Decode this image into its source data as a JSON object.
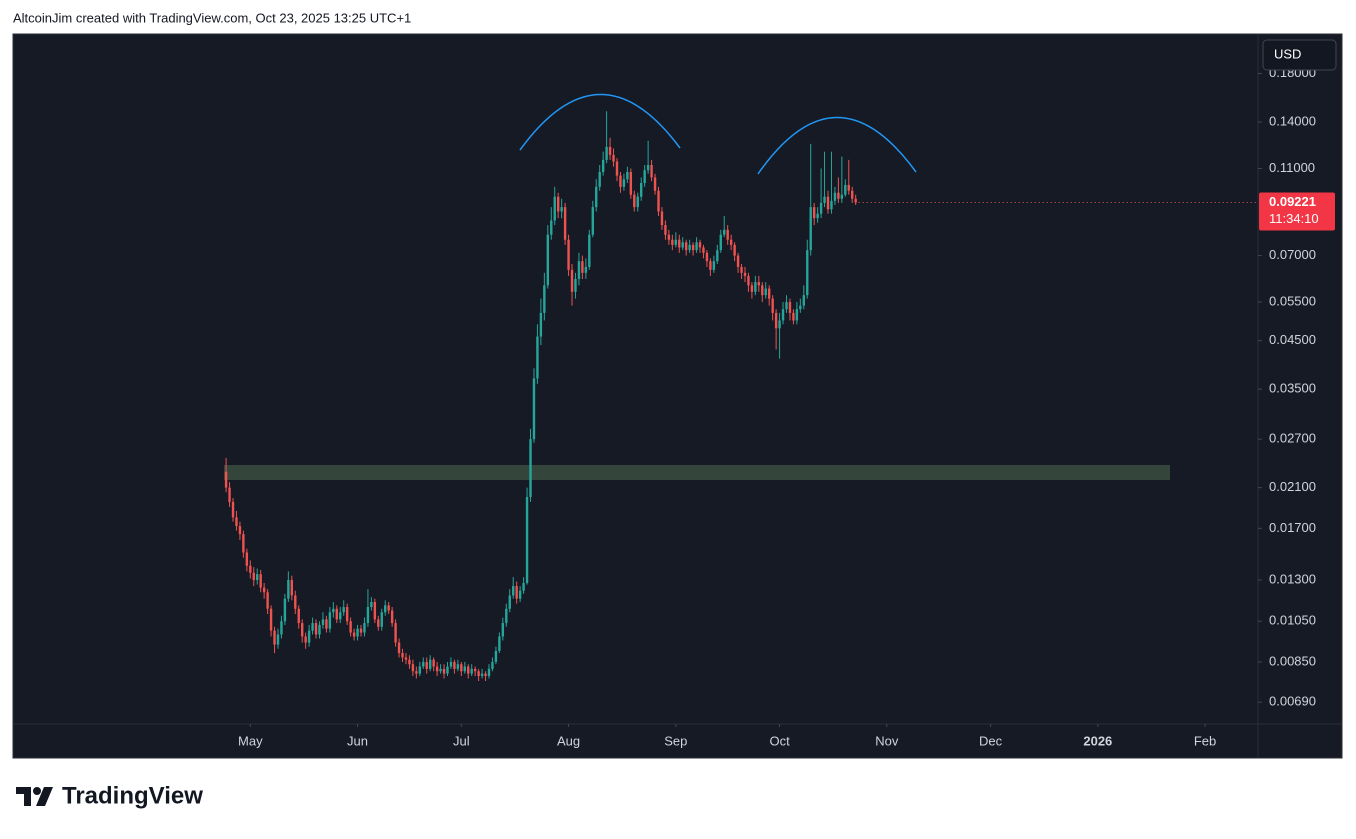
{
  "header": "AltcoinJim created with TradingView.com, Oct 23, 2025 13:25 UTC+1",
  "footer_logo": "TradingView",
  "currency": "USD",
  "countdown": "11:34:10",
  "chart_data": {
    "type": "candlestick",
    "log_scale": true,
    "grid": false,
    "up_color": "#26a69a",
    "down_color": "#ef5350",
    "ylim": [
      0.00616,
      0.221
    ],
    "yticks": [
      {
        "value": 0.18,
        "label": "0.18000"
      },
      {
        "value": 0.14,
        "label": "0.14000"
      },
      {
        "value": 0.11,
        "label": "0.11000"
      },
      {
        "value": 0.07,
        "label": "0.07000"
      },
      {
        "value": 0.055,
        "label": "0.05500"
      },
      {
        "value": 0.045,
        "label": "0.04500"
      },
      {
        "value": 0.035,
        "label": "0.03500"
      },
      {
        "value": 0.027,
        "label": "0.02700"
      },
      {
        "value": 0.021,
        "label": "0.02100"
      },
      {
        "value": 0.017,
        "label": "0.01700"
      },
      {
        "value": 0.013,
        "label": "0.01300"
      },
      {
        "value": 0.0105,
        "label": "0.01050"
      },
      {
        "value": 0.0085,
        "label": "0.00850"
      },
      {
        "value": 0.0069,
        "label": "0.00690"
      }
    ],
    "xlim": [
      -61.6,
      298.3
    ],
    "xticks": [
      {
        "value": 7,
        "label": "May"
      },
      {
        "value": 38,
        "label": "Jun"
      },
      {
        "value": 68,
        "label": "Jul"
      },
      {
        "value": 99,
        "label": "Aug"
      },
      {
        "value": 130,
        "label": "Sep"
      },
      {
        "value": 160,
        "label": "Oct"
      },
      {
        "value": 191,
        "label": "Nov"
      },
      {
        "value": 221,
        "label": "Dec"
      },
      {
        "value": 252,
        "label": "2026",
        "bold": true
      },
      {
        "value": 283,
        "label": "Feb"
      }
    ],
    "open": [
      0.0228,
      0.021,
      0.0195,
      0.018,
      0.0172,
      0.0165,
      0.015,
      0.014,
      0.0135,
      0.013,
      0.0134,
      0.0125,
      0.0122,
      0.0112,
      0.01,
      0.0093,
      0.0098,
      0.0105,
      0.0118,
      0.013,
      0.012,
      0.0112,
      0.0104,
      0.0097,
      0.0094,
      0.01,
      0.0104,
      0.0098,
      0.0103,
      0.0106,
      0.0101,
      0.011,
      0.0112,
      0.0106,
      0.011,
      0.0113,
      0.0105,
      0.0099,
      0.0097,
      0.0101,
      0.0099,
      0.0104,
      0.0113,
      0.0116,
      0.0106,
      0.0102,
      0.011,
      0.0114,
      0.0111,
      0.0104,
      0.0094,
      0.0089,
      0.0087,
      0.0086,
      0.0084,
      0.0081,
      0.008,
      0.0083,
      0.0085,
      0.0082,
      0.0086,
      0.0083,
      0.0081,
      0.0082,
      0.008,
      0.0083,
      0.0085,
      0.0082,
      0.0084,
      0.0081,
      0.0083,
      0.008,
      0.0082,
      0.0081,
      0.0079,
      0.008,
      0.0079,
      0.0082,
      0.0085,
      0.009,
      0.0097,
      0.0104,
      0.0112,
      0.012,
      0.0126,
      0.0118,
      0.0123,
      0.0128,
      0.02,
      0.027,
      0.037,
      0.046,
      0.052,
      0.06,
      0.078,
      0.084,
      0.095,
      0.088,
      0.09,
      0.076,
      0.065,
      0.058,
      0.062,
      0.068,
      0.064,
      0.066,
      0.078,
      0.09,
      0.1,
      0.108,
      0.115,
      0.123,
      0.118,
      0.114,
      0.106,
      0.1,
      0.104,
      0.108,
      0.096,
      0.09,
      0.095,
      0.102,
      0.109,
      0.112,
      0.105,
      0.098,
      0.088,
      0.082,
      0.078,
      0.076,
      0.074,
      0.076,
      0.073,
      0.075,
      0.072,
      0.074,
      0.072,
      0.075,
      0.073,
      0.071,
      0.068,
      0.065,
      0.068,
      0.072,
      0.078,
      0.08,
      0.076,
      0.074,
      0.07,
      0.066,
      0.064,
      0.063,
      0.06,
      0.058,
      0.061,
      0.06,
      0.057,
      0.059,
      0.056,
      0.052,
      0.048,
      0.05,
      0.053,
      0.055,
      0.052,
      0.05,
      0.053,
      0.054,
      0.057,
      0.072,
      0.09,
      0.085,
      0.087,
      0.092,
      0.095,
      0.089,
      0.093,
      0.097,
      0.094,
      0.096,
      0.101,
      0.098,
      0.094
    ],
    "high": [
      0.0245,
      0.0216,
      0.0199,
      0.0186,
      0.0176,
      0.0168,
      0.0153,
      0.0144,
      0.0139,
      0.0138,
      0.0137,
      0.0128,
      0.0124,
      0.0114,
      0.0102,
      0.0101,
      0.0108,
      0.0121,
      0.0136,
      0.0133,
      0.0123,
      0.0114,
      0.0106,
      0.0099,
      0.0103,
      0.0107,
      0.0106,
      0.0105,
      0.011,
      0.0108,
      0.0113,
      0.0116,
      0.0114,
      0.0113,
      0.0117,
      0.0115,
      0.0107,
      0.0101,
      0.0103,
      0.0103,
      0.0107,
      0.0124,
      0.0119,
      0.0118,
      0.0108,
      0.0112,
      0.0117,
      0.0116,
      0.0113,
      0.0106,
      0.0096,
      0.0091,
      0.0089,
      0.0088,
      0.0086,
      0.0083,
      0.0085,
      0.0087,
      0.0087,
      0.0088,
      0.0087,
      0.0085,
      0.0084,
      0.0084,
      0.0085,
      0.0087,
      0.0086,
      0.0086,
      0.0085,
      0.0085,
      0.0084,
      0.0084,
      0.0083,
      0.0082,
      0.0082,
      0.0081,
      0.0084,
      0.0087,
      0.0092,
      0.0099,
      0.0107,
      0.0115,
      0.0124,
      0.0132,
      0.0129,
      0.0126,
      0.0132,
      0.021,
      0.0285,
      0.039,
      0.049,
      0.056,
      0.064,
      0.082,
      0.09,
      0.1,
      0.097,
      0.094,
      0.092,
      0.078,
      0.067,
      0.064,
      0.071,
      0.07,
      0.069,
      0.08,
      0.093,
      0.104,
      0.112,
      0.12,
      0.148,
      0.129,
      0.122,
      0.116,
      0.108,
      0.107,
      0.111,
      0.11,
      0.098,
      0.097,
      0.105,
      0.112,
      0.127,
      0.115,
      0.107,
      0.1,
      0.09,
      0.084,
      0.08,
      0.078,
      0.079,
      0.078,
      0.077,
      0.076,
      0.076,
      0.075,
      0.077,
      0.076,
      0.074,
      0.072,
      0.069,
      0.07,
      0.074,
      0.08,
      0.086,
      0.082,
      0.078,
      0.075,
      0.071,
      0.067,
      0.066,
      0.064,
      0.061,
      0.063,
      0.063,
      0.061,
      0.061,
      0.06,
      0.057,
      0.053,
      0.052,
      0.055,
      0.057,
      0.056,
      0.053,
      0.055,
      0.056,
      0.06,
      0.076,
      0.125,
      0.092,
      0.09,
      0.11,
      0.12,
      0.098,
      0.12,
      0.1,
      0.105,
      0.117,
      0.104,
      0.115,
      0.1,
      0.096
    ],
    "low": [
      0.0205,
      0.019,
      0.0176,
      0.0168,
      0.016,
      0.0146,
      0.0136,
      0.0131,
      0.0126,
      0.0127,
      0.0122,
      0.0118,
      0.0109,
      0.0097,
      0.0089,
      0.0091,
      0.0096,
      0.0103,
      0.0116,
      0.0117,
      0.0109,
      0.0101,
      0.0094,
      0.0091,
      0.0092,
      0.0098,
      0.0096,
      0.0096,
      0.0101,
      0.0099,
      0.0099,
      0.0107,
      0.0104,
      0.0104,
      0.0108,
      0.0103,
      0.0097,
      0.0095,
      0.0095,
      0.0097,
      0.0097,
      0.0102,
      0.0111,
      0.0104,
      0.01,
      0.01,
      0.0108,
      0.0109,
      0.0102,
      0.0092,
      0.0087,
      0.0085,
      0.0084,
      0.0082,
      0.0079,
      0.0078,
      0.0079,
      0.0082,
      0.008,
      0.0081,
      0.0081,
      0.0079,
      0.008,
      0.0078,
      0.0079,
      0.0082,
      0.008,
      0.0081,
      0.0079,
      0.008,
      0.0078,
      0.0079,
      0.0079,
      0.0077,
      0.0078,
      0.0077,
      0.0078,
      0.0081,
      0.0084,
      0.0089,
      0.0095,
      0.0102,
      0.011,
      0.0118,
      0.0115,
      0.0116,
      0.0121,
      0.0127,
      0.0195,
      0.0265,
      0.036,
      0.044,
      0.05,
      0.059,
      0.076,
      0.082,
      0.085,
      0.085,
      0.074,
      0.063,
      0.054,
      0.056,
      0.06,
      0.062,
      0.062,
      0.065,
      0.077,
      0.088,
      0.098,
      0.106,
      0.113,
      0.115,
      0.111,
      0.103,
      0.097,
      0.098,
      0.102,
      0.094,
      0.088,
      0.088,
      0.093,
      0.1,
      0.107,
      0.103,
      0.096,
      0.086,
      0.08,
      0.076,
      0.074,
      0.072,
      0.073,
      0.071,
      0.072,
      0.07,
      0.071,
      0.07,
      0.071,
      0.071,
      0.069,
      0.066,
      0.063,
      0.064,
      0.067,
      0.071,
      0.077,
      0.074,
      0.072,
      0.068,
      0.064,
      0.062,
      0.061,
      0.058,
      0.056,
      0.057,
      0.058,
      0.055,
      0.056,
      0.054,
      0.05,
      0.043,
      0.041,
      0.049,
      0.052,
      0.05,
      0.049,
      0.049,
      0.052,
      0.053,
      0.056,
      0.07,
      0.082,
      0.083,
      0.085,
      0.09,
      0.087,
      0.087,
      0.091,
      0.092,
      0.092,
      0.095,
      0.096,
      0.092,
      0.091
    ],
    "close": [
      0.021,
      0.0195,
      0.018,
      0.0172,
      0.0165,
      0.015,
      0.014,
      0.0135,
      0.013,
      0.0134,
      0.0125,
      0.0122,
      0.0112,
      0.01,
      0.0093,
      0.0098,
      0.0105,
      0.0118,
      0.013,
      0.012,
      0.0112,
      0.0104,
      0.0097,
      0.0094,
      0.01,
      0.0104,
      0.0098,
      0.0103,
      0.0106,
      0.0101,
      0.011,
      0.0112,
      0.0106,
      0.011,
      0.0113,
      0.0105,
      0.0099,
      0.0097,
      0.0101,
      0.0099,
      0.0104,
      0.0113,
      0.0116,
      0.0106,
      0.0102,
      0.011,
      0.0114,
      0.0111,
      0.0104,
      0.0094,
      0.0089,
      0.0087,
      0.0086,
      0.0084,
      0.0081,
      0.008,
      0.0083,
      0.0085,
      0.0082,
      0.0086,
      0.0083,
      0.0081,
      0.0082,
      0.008,
      0.0083,
      0.0085,
      0.0082,
      0.0084,
      0.0081,
      0.0083,
      0.008,
      0.0082,
      0.0081,
      0.0079,
      0.008,
      0.0079,
      0.0082,
      0.0085,
      0.009,
      0.0097,
      0.0104,
      0.0112,
      0.012,
      0.0126,
      0.0118,
      0.0123,
      0.0128,
      0.02,
      0.027,
      0.037,
      0.046,
      0.052,
      0.06,
      0.078,
      0.084,
      0.095,
      0.088,
      0.09,
      0.076,
      0.065,
      0.058,
      0.062,
      0.068,
      0.064,
      0.066,
      0.078,
      0.09,
      0.1,
      0.108,
      0.115,
      0.123,
      0.118,
      0.114,
      0.106,
      0.1,
      0.104,
      0.108,
      0.096,
      0.09,
      0.095,
      0.102,
      0.109,
      0.112,
      0.105,
      0.098,
      0.088,
      0.082,
      0.078,
      0.076,
      0.074,
      0.076,
      0.073,
      0.075,
      0.072,
      0.074,
      0.072,
      0.075,
      0.073,
      0.071,
      0.068,
      0.065,
      0.068,
      0.072,
      0.078,
      0.08,
      0.076,
      0.074,
      0.07,
      0.066,
      0.064,
      0.063,
      0.06,
      0.058,
      0.061,
      0.06,
      0.057,
      0.059,
      0.056,
      0.052,
      0.048,
      0.05,
      0.053,
      0.055,
      0.052,
      0.05,
      0.053,
      0.054,
      0.057,
      0.072,
      0.09,
      0.085,
      0.087,
      0.092,
      0.095,
      0.089,
      0.093,
      0.097,
      0.094,
      0.096,
      0.101,
      0.098,
      0.094,
      0.09221
    ]
  }
}
